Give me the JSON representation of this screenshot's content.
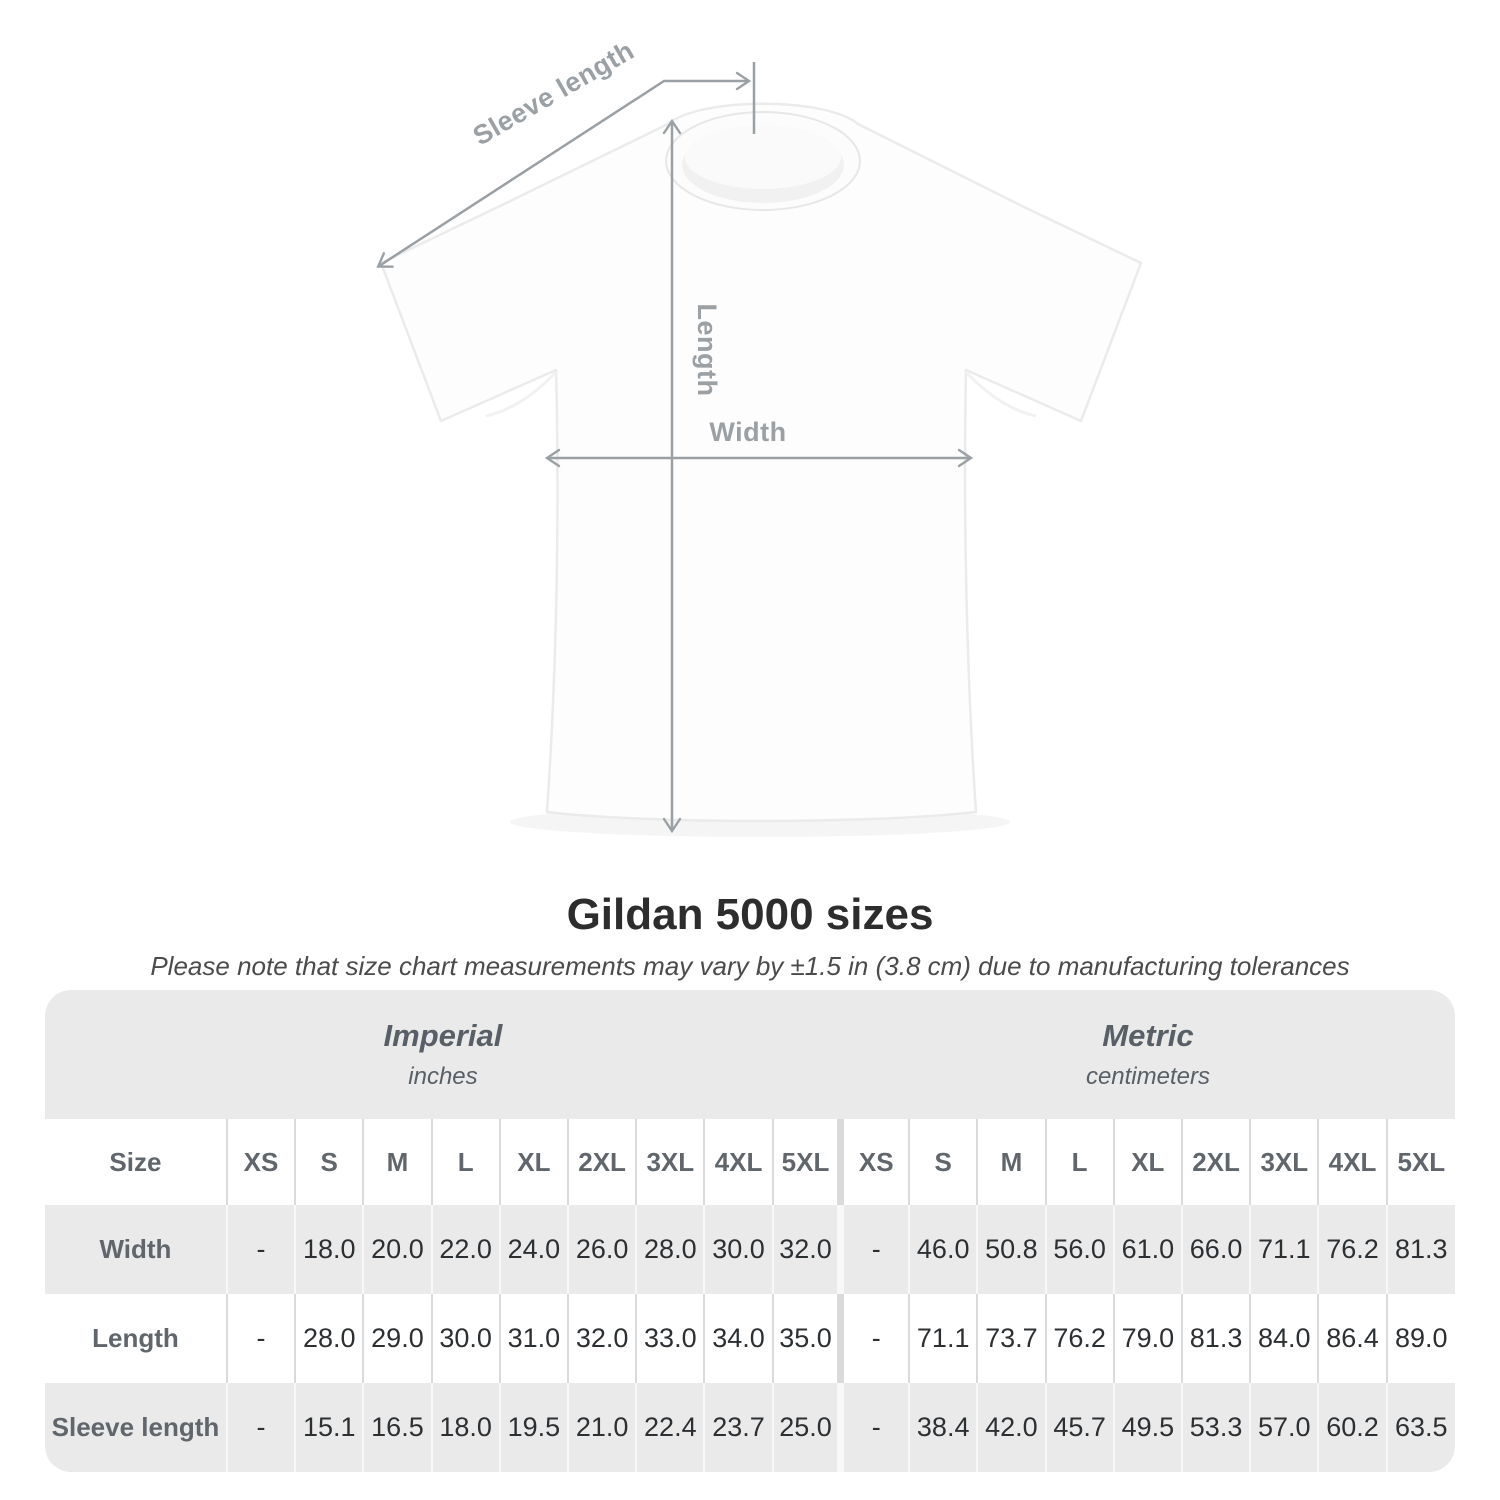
{
  "diagram": {
    "sleeve_label": "Sleeve length",
    "length_label": "Length",
    "width_label": "Width"
  },
  "title": "Gildan 5000 sizes",
  "subtitle": "Please note that size chart measurements may vary by ±1.5 in (3.8 cm) due to manufacturing tolerances",
  "table": {
    "corner_header": "Size",
    "unit_groups": [
      {
        "name": "Imperial",
        "unit": "inches"
      },
      {
        "name": "Metric",
        "unit": "centimeters"
      }
    ],
    "sizes": [
      "XS",
      "S",
      "M",
      "L",
      "XL",
      "2XL",
      "3XL",
      "4XL",
      "5XL"
    ],
    "rows": [
      {
        "label": "Width",
        "imperial": [
          "-",
          "18.0",
          "20.0",
          "22.0",
          "24.0",
          "26.0",
          "28.0",
          "30.0",
          "32.0"
        ],
        "metric": [
          "-",
          "46.0",
          "50.8",
          "56.0",
          "61.0",
          "66.0",
          "71.1",
          "76.2",
          "81.3"
        ]
      },
      {
        "label": "Length",
        "imperial": [
          "-",
          "28.0",
          "29.0",
          "30.0",
          "31.0",
          "32.0",
          "33.0",
          "34.0",
          "35.0"
        ],
        "metric": [
          "-",
          "71.1",
          "73.7",
          "76.2",
          "79.0",
          "81.3",
          "84.0",
          "86.4",
          "89.0"
        ]
      },
      {
        "label": "Sleeve length",
        "imperial": [
          "-",
          "15.1",
          "16.5",
          "18.0",
          "19.5",
          "21.0",
          "22.4",
          "23.7",
          "25.0"
        ],
        "metric": [
          "-",
          "38.4",
          "42.0",
          "45.7",
          "49.5",
          "53.3",
          "57.0",
          "60.2",
          "63.5"
        ]
      }
    ]
  },
  "chart_data": {
    "type": "table",
    "title": "Gildan 5000 sizes",
    "columns": [
      "Size",
      "XS",
      "S",
      "M",
      "L",
      "XL",
      "2XL",
      "3XL",
      "4XL",
      "5XL"
    ],
    "units": {
      "imperial": "inches",
      "metric": "centimeters"
    },
    "rows_imperial": [
      [
        "Width",
        null,
        18.0,
        20.0,
        22.0,
        24.0,
        26.0,
        28.0,
        30.0,
        32.0
      ],
      [
        "Length",
        null,
        28.0,
        29.0,
        30.0,
        31.0,
        32.0,
        33.0,
        34.0,
        35.0
      ],
      [
        "Sleeve length",
        null,
        15.1,
        16.5,
        18.0,
        19.5,
        21.0,
        22.4,
        23.7,
        25.0
      ]
    ],
    "rows_metric": [
      [
        "Width",
        null,
        46.0,
        50.8,
        56.0,
        61.0,
        66.0,
        71.1,
        76.2,
        81.3
      ],
      [
        "Length",
        null,
        71.1,
        73.7,
        76.2,
        79.0,
        81.3,
        84.0,
        86.4,
        89.0
      ],
      [
        "Sleeve length",
        null,
        38.4,
        42.0,
        45.7,
        49.5,
        53.3,
        57.0,
        60.2,
        63.5
      ]
    ]
  },
  "colors": {
    "arrow_gray": "#9ba0a4",
    "band_bg": "#eaeaea",
    "header_text": "#60666c",
    "value_text": "#2d3033"
  }
}
